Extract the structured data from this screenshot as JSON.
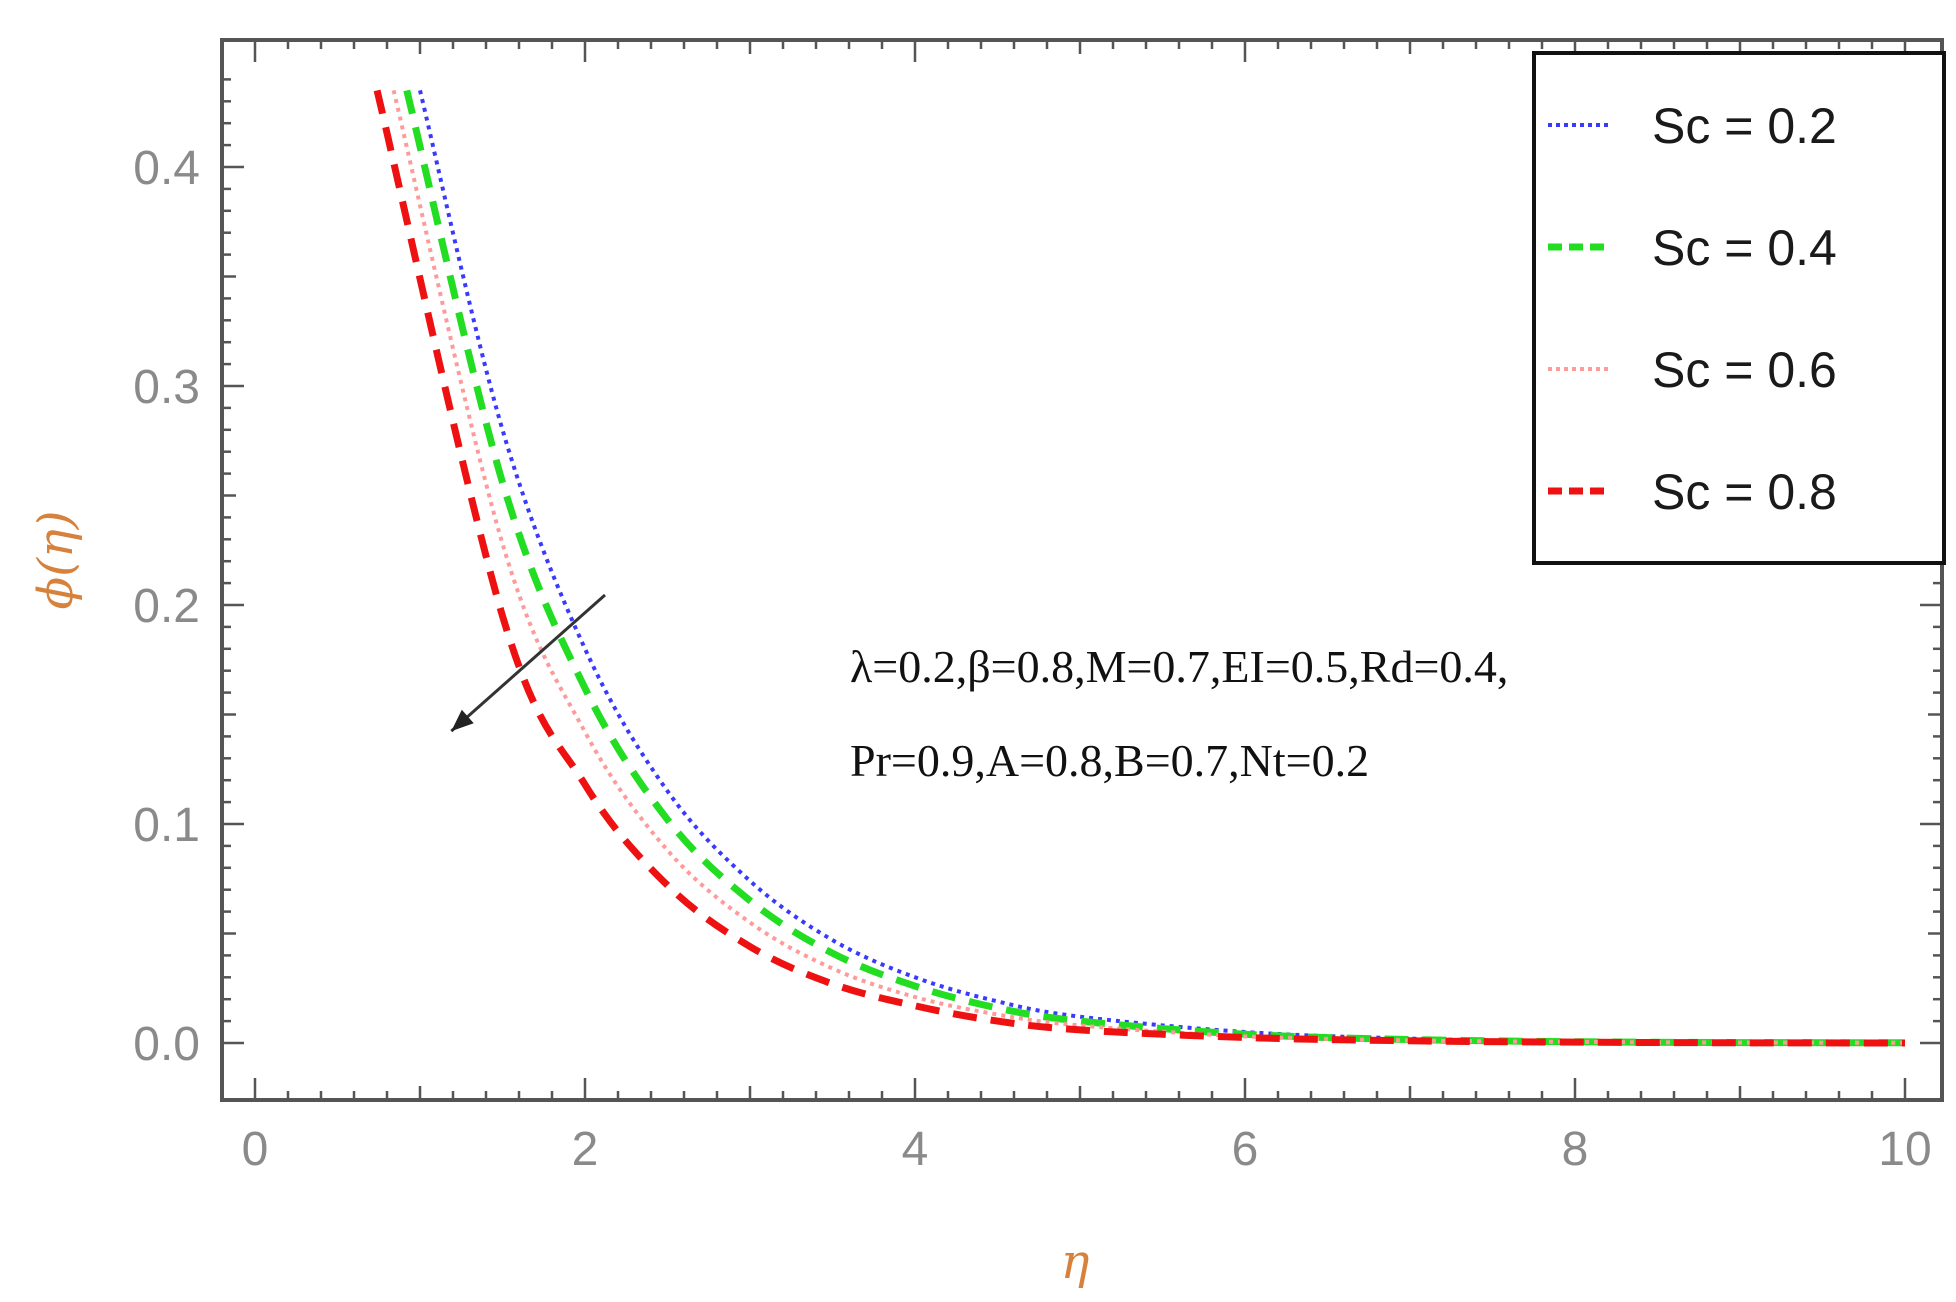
{
  "chart_data": {
    "type": "line",
    "title": "",
    "xlabel": "η",
    "ylabel": "ϕ(η)",
    "xlim": [
      0,
      10
    ],
    "ylim": [
      0,
      0.44
    ],
    "xticks": [
      "0",
      "2",
      "4",
      "6",
      "8",
      "10"
    ],
    "yticks": [
      "0.0",
      "0.1",
      "0.2",
      "0.3",
      "0.4"
    ],
    "grid": false,
    "legend_position": "top-right",
    "series": [
      {
        "name": "Sc = 0.2",
        "color": "#3a3aff",
        "style": "dotted",
        "x": [
          1.0,
          1.5,
          2.0,
          2.5,
          3.0,
          3.5,
          4.0,
          4.5,
          5.0,
          6.0,
          7.0,
          8.0,
          9.0,
          10.0
        ],
        "y": [
          0.435,
          0.28,
          0.18,
          0.115,
          0.074,
          0.047,
          0.03,
          0.019,
          0.012,
          0.005,
          0.002,
          0.0007,
          0.0003,
          0.0001
        ]
      },
      {
        "name": "Sc = 0.4",
        "color": "#22dd22",
        "style": "dashed",
        "x": [
          0.92,
          1.5,
          2.0,
          2.5,
          3.0,
          3.5,
          4.0,
          4.5,
          5.0,
          6.0,
          7.0,
          8.0,
          9.0,
          10.0
        ],
        "y": [
          0.435,
          0.256,
          0.162,
          0.102,
          0.065,
          0.041,
          0.026,
          0.016,
          0.01,
          0.004,
          0.0016,
          0.0006,
          0.0002,
          0.0001
        ]
      },
      {
        "name": "Sc  = 0.6",
        "color": "#ff9a9a",
        "style": "dotted",
        "x": [
          0.84,
          1.5,
          2.0,
          2.5,
          3.0,
          3.5,
          4.0,
          4.5,
          5.0,
          6.0,
          7.0,
          8.0,
          9.0,
          10.0
        ],
        "y": [
          0.435,
          0.228,
          0.142,
          0.088,
          0.055,
          0.034,
          0.021,
          0.013,
          0.008,
          0.003,
          0.0012,
          0.0005,
          0.0002,
          0.0001
        ]
      },
      {
        "name": "Sc = 0.8",
        "color": "#ee1111",
        "style": "dashed",
        "x": [
          0.74,
          1.5,
          2.0,
          2.5,
          3.0,
          3.5,
          4.0,
          4.5,
          5.0,
          6.0,
          7.0,
          8.0,
          9.0,
          10.0
        ],
        "y": [
          0.435,
          0.195,
          0.118,
          0.072,
          0.044,
          0.027,
          0.017,
          0.01,
          0.006,
          0.0025,
          0.001,
          0.0004,
          0.0001,
          0.0
        ]
      }
    ],
    "annotations": [
      "λ=0.2,β=0.8,M=0.7,EI=0.5,Rd=0.4,",
      "Pr=0.9,A=0.8,B=0.7,Nt=0.2"
    ],
    "arrow": {
      "from": [
        2.0,
        0.2
      ],
      "to": [
        1.22,
        0.147
      ]
    }
  }
}
